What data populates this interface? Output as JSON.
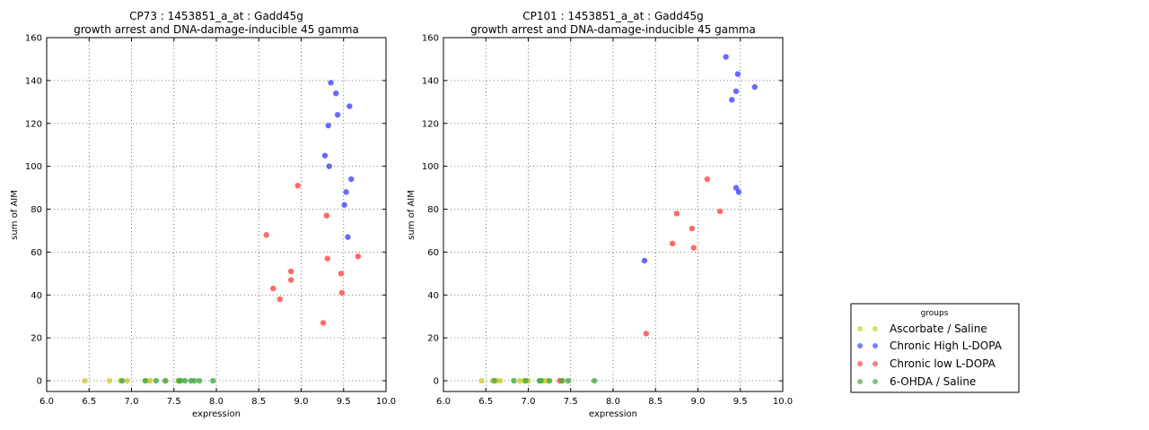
{
  "chart_data": [
    {
      "type": "scatter",
      "title": "CP73 : 1453851_a_at : Gadd45g",
      "subtitle": "growth arrest and DNA-damage-inducible 45 gamma",
      "xlabel": "expression",
      "ylabel": "sum of AIM",
      "xlim": [
        6.0,
        10.0
      ],
      "ylim": [
        -5,
        160
      ],
      "xticks": [
        "6.0",
        "6.5",
        "7.0",
        "7.5",
        "8.0",
        "8.5",
        "9.0",
        "9.5",
        "10.0"
      ],
      "yticks": [
        "0",
        "20",
        "40",
        "60",
        "80",
        "100",
        "120",
        "140",
        "160"
      ],
      "grid": true,
      "series": [
        {
          "name": "Ascorbate / Saline",
          "color": "#cccc33",
          "points": [
            [
              6.45,
              0
            ],
            [
              6.74,
              0
            ],
            [
              6.87,
              0
            ],
            [
              6.95,
              0
            ],
            [
              7.18,
              0
            ],
            [
              7.22,
              0
            ],
            [
              7.4,
              0
            ],
            [
              7.55,
              0
            ]
          ]
        },
        {
          "name": "Chronic High L-DOPA",
          "color": "#4444ff",
          "points": [
            [
              9.35,
              139
            ],
            [
              9.41,
              134
            ],
            [
              9.57,
              128
            ],
            [
              9.43,
              124
            ],
            [
              9.32,
              119
            ],
            [
              9.28,
              105
            ],
            [
              9.33,
              100
            ],
            [
              9.59,
              94
            ],
            [
              9.53,
              88
            ],
            [
              9.51,
              82
            ],
            [
              9.55,
              67
            ]
          ]
        },
        {
          "name": "Chronic low L-DOPA",
          "color": "#ff4444",
          "points": [
            [
              8.96,
              91
            ],
            [
              9.3,
              77
            ],
            [
              8.59,
              68
            ],
            [
              9.67,
              58
            ],
            [
              9.31,
              57
            ],
            [
              8.88,
              51
            ],
            [
              9.47,
              50
            ],
            [
              8.88,
              47
            ],
            [
              8.67,
              43
            ],
            [
              9.48,
              41
            ],
            [
              8.75,
              38
            ],
            [
              9.26,
              27
            ]
          ]
        },
        {
          "name": "6-OHDA / Saline",
          "color": "#44aa44",
          "points": [
            [
              6.89,
              0
            ],
            [
              7.16,
              0
            ],
            [
              7.29,
              0
            ],
            [
              7.4,
              0
            ],
            [
              7.56,
              0
            ],
            [
              7.58,
              0
            ],
            [
              7.63,
              0
            ],
            [
              7.7,
              0
            ],
            [
              7.74,
              0
            ],
            [
              7.8,
              0
            ],
            [
              7.96,
              0
            ]
          ]
        }
      ]
    },
    {
      "type": "scatter",
      "title": "CP101 : 1453851_a_at : Gadd45g",
      "subtitle": "growth arrest and DNA-damage-inducible 45 gamma",
      "xlabel": "expression",
      "ylabel": "sum of AIM",
      "xlim": [
        6.0,
        10.0
      ],
      "ylim": [
        -5,
        160
      ],
      "xticks": [
        "6.0",
        "6.5",
        "7.0",
        "7.5",
        "8.0",
        "8.5",
        "9.0",
        "9.5",
        "10.0"
      ],
      "yticks": [
        "0",
        "20",
        "40",
        "60",
        "80",
        "100",
        "120",
        "140",
        "160"
      ],
      "grid": true,
      "series": [
        {
          "name": "Ascorbate / Saline",
          "color": "#cccc33",
          "points": [
            [
              6.45,
              0
            ],
            [
              6.58,
              0
            ],
            [
              6.63,
              0
            ],
            [
              6.67,
              0
            ],
            [
              6.9,
              0
            ],
            [
              6.95,
              0
            ],
            [
              7.0,
              0
            ],
            [
              7.18,
              0
            ],
            [
              7.22,
              0
            ],
            [
              7.4,
              0
            ]
          ]
        },
        {
          "name": "Chronic High L-DOPA",
          "color": "#4444ff",
          "points": [
            [
              9.33,
              151
            ],
            [
              9.47,
              143
            ],
            [
              9.67,
              137
            ],
            [
              9.45,
              135
            ],
            [
              9.4,
              131
            ],
            [
              9.45,
              90
            ],
            [
              9.48,
              88
            ],
            [
              8.37,
              56
            ]
          ]
        },
        {
          "name": "Chronic low L-DOPA",
          "color": "#ff4444",
          "points": [
            [
              9.11,
              94
            ],
            [
              9.26,
              79
            ],
            [
              8.75,
              78
            ],
            [
              8.93,
              71
            ],
            [
              8.7,
              64
            ],
            [
              8.95,
              62
            ],
            [
              8.39,
              22
            ],
            [
              7.37,
              0
            ]
          ]
        },
        {
          "name": "6-OHDA / Saline",
          "color": "#44aa44",
          "points": [
            [
              6.6,
              0
            ],
            [
              6.83,
              0
            ],
            [
              6.97,
              0
            ],
            [
              7.13,
              0
            ],
            [
              7.15,
              0
            ],
            [
              7.25,
              0
            ],
            [
              7.4,
              0
            ],
            [
              7.47,
              0
            ],
            [
              7.78,
              0
            ]
          ]
        }
      ]
    }
  ],
  "legend": {
    "title": "groups",
    "placement": "lower-right",
    "entries": [
      {
        "label": "Ascorbate / Saline",
        "color": "#cccc33"
      },
      {
        "label": "Chronic High L-DOPA",
        "color": "#4444ff"
      },
      {
        "label": "Chronic low L-DOPA",
        "color": "#ff4444"
      },
      {
        "label": "6-OHDA / Saline",
        "color": "#44aa44"
      }
    ]
  }
}
